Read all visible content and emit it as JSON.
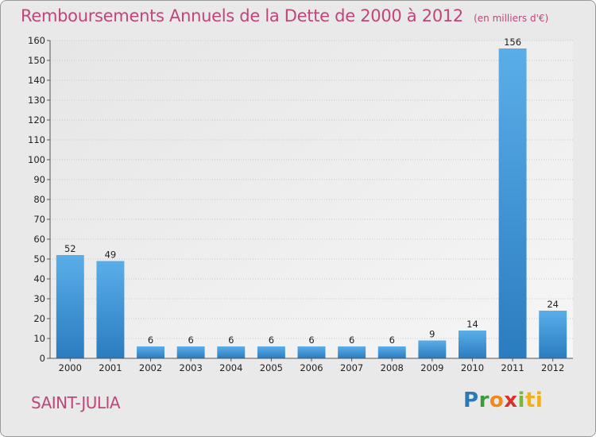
{
  "chart_data": {
    "type": "bar",
    "title": "Remboursements Annuels de la Dette de 2000 à 2012",
    "unit_note": "(en milliers d'€)",
    "categories": [
      "2000",
      "2001",
      "2002",
      "2003",
      "2004",
      "2005",
      "2006",
      "2007",
      "2008",
      "2009",
      "2010",
      "2011",
      "2012"
    ],
    "values": [
      52,
      49,
      6,
      6,
      6,
      6,
      6,
      6,
      6,
      9,
      14,
      156,
      24
    ],
    "ylim": [
      0,
      160
    ],
    "yticks": [
      0,
      10,
      20,
      30,
      40,
      50,
      60,
      70,
      80,
      90,
      100,
      110,
      120,
      130,
      140,
      150,
      160
    ],
    "grid": true,
    "bar_color": "#3d95d9"
  },
  "footer": {
    "commune": "SAINT-JULIA",
    "logo_letters": [
      "P",
      "r",
      "o",
      "x",
      "i",
      "ti"
    ]
  }
}
